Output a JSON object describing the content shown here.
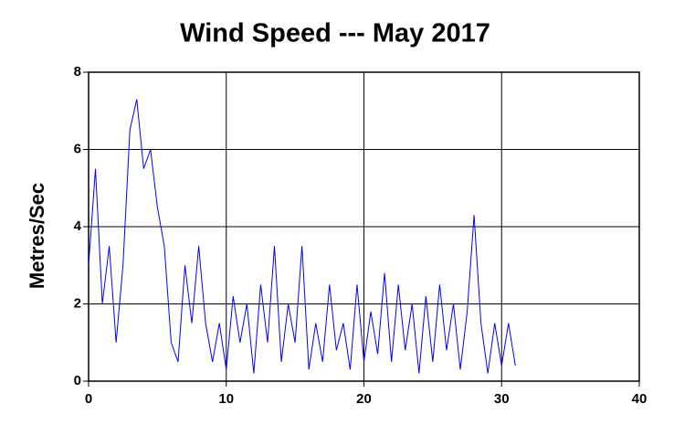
{
  "chart_data": {
    "type": "line",
    "title": "Wind Speed --- May 2017",
    "y_label": "Metres/Sec",
    "x": [
      0,
      0.5,
      1,
      1.5,
      2,
      2.5,
      3,
      3.5,
      4,
      4.5,
      5,
      5.5,
      6,
      6.5,
      7,
      7.5,
      8,
      8.5,
      9,
      9.5,
      10,
      10.5,
      11,
      11.5,
      12,
      12.5,
      13,
      13.5,
      14,
      14.5,
      15,
      15.5,
      16,
      16.5,
      17,
      17.5,
      18,
      18.5,
      19,
      19.5,
      20,
      20.5,
      21,
      21.5,
      22,
      22.5,
      23,
      23.5,
      24,
      24.5,
      25,
      25.5,
      26,
      26.5,
      27,
      27.5,
      28,
      28.5,
      29,
      29.5,
      30,
      30.5,
      31
    ],
    "series": [
      {
        "name": "Wind speed",
        "color": "#0000ff",
        "values": [
          3.0,
          5.5,
          2.0,
          3.5,
          1.0,
          3.0,
          6.5,
          7.3,
          5.5,
          6.0,
          4.5,
          3.5,
          1.0,
          0.5,
          3.0,
          1.5,
          3.5,
          1.5,
          0.5,
          1.5,
          0.3,
          2.2,
          1.0,
          2.0,
          0.2,
          2.5,
          1.0,
          3.5,
          0.5,
          2.0,
          1.0,
          3.5,
          0.3,
          1.5,
          0.5,
          2.5,
          0.8,
          1.5,
          0.3,
          2.5,
          0.5,
          1.8,
          0.7,
          2.8,
          0.5,
          2.5,
          0.8,
          2.0,
          0.2,
          2.2,
          0.5,
          2.5,
          0.8,
          2.0,
          0.3,
          1.8,
          4.3,
          1.5,
          0.2,
          1.5,
          0.4,
          1.5,
          0.4
        ]
      }
    ],
    "xlim": [
      0,
      40
    ],
    "xticks": [
      0,
      10,
      20,
      30,
      40
    ],
    "ylim": [
      0,
      8
    ],
    "yticks": [
      0,
      2,
      4,
      6,
      8
    ],
    "grid": true
  }
}
